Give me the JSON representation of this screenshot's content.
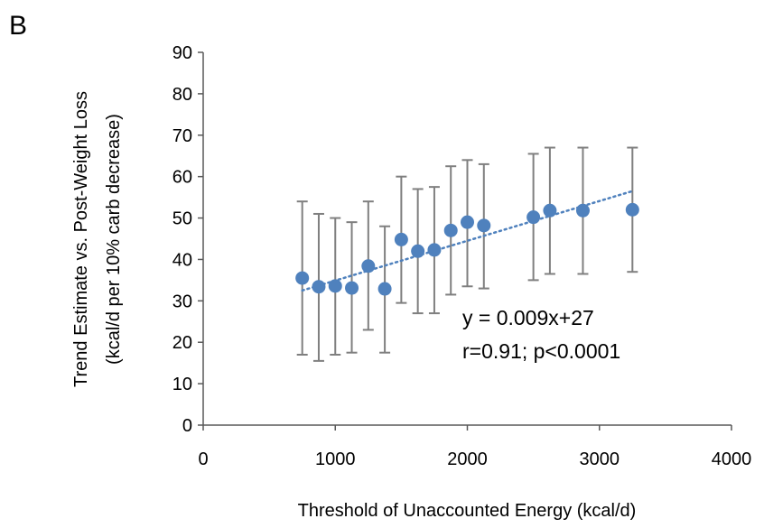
{
  "panel_label": "B",
  "chart_data": {
    "type": "scatter",
    "xlabel": "Threshold of Unaccounted Energy (kcal/d)",
    "ylabel": [
      "Trend Estimate vs. Post-Weight Loss",
      "(kcal/d per 10% carb decrease)"
    ],
    "xlim": [
      0,
      4000
    ],
    "ylim": [
      0,
      90
    ],
    "xticks": [
      0,
      1000,
      2000,
      3000,
      4000
    ],
    "yticks": [
      0,
      10,
      20,
      30,
      40,
      50,
      60,
      70,
      80,
      90
    ],
    "grid": false,
    "series": [
      {
        "points": [
          {
            "x": 750,
            "y": 35.5,
            "low": 17,
            "high": 54
          },
          {
            "x": 875,
            "y": 33.4,
            "low": 15.5,
            "high": 51
          },
          {
            "x": 1000,
            "y": 33.6,
            "low": 17,
            "high": 50
          },
          {
            "x": 1125,
            "y": 33.1,
            "low": 17.5,
            "high": 49
          },
          {
            "x": 1250,
            "y": 38.4,
            "low": 23,
            "high": 54
          },
          {
            "x": 1375,
            "y": 32.9,
            "low": 17.5,
            "high": 48
          },
          {
            "x": 1500,
            "y": 44.8,
            "low": 29.5,
            "high": 60
          },
          {
            "x": 1625,
            "y": 42,
            "low": 27,
            "high": 57
          },
          {
            "x": 1750,
            "y": 42.3,
            "low": 27,
            "high": 57.5
          },
          {
            "x": 1875,
            "y": 47,
            "low": 31.5,
            "high": 62.5
          },
          {
            "x": 2000,
            "y": 49,
            "low": 33.5,
            "high": 64
          },
          {
            "x": 2125,
            "y": 48.2,
            "low": 33,
            "high": 63
          },
          {
            "x": 2500,
            "y": 50.2,
            "low": 35,
            "high": 65.5
          },
          {
            "x": 2625,
            "y": 51.8,
            "low": 36.5,
            "high": 67
          },
          {
            "x": 2875,
            "y": 51.8,
            "low": 36.5,
            "high": 67
          },
          {
            "x": 3250,
            "y": 52,
            "low": 37,
            "high": 67
          }
        ],
        "color": "#4F81BD"
      }
    ],
    "trendline": {
      "x_start": 750,
      "x_end": 3250,
      "y_start": 32.5,
      "y_end": 56.5,
      "style": "dotted",
      "color": "#4F81BD"
    },
    "annotations": [
      "y = 0.009x+27",
      "r=0.91; p<0.0001"
    ],
    "errorbar_color": "#7F7F7F"
  }
}
